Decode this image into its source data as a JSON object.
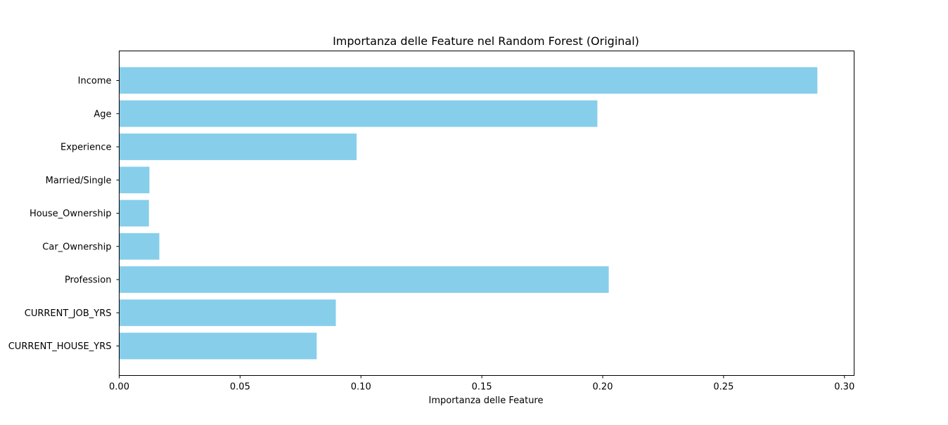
{
  "chart_data": {
    "type": "bar",
    "orientation": "horizontal",
    "title": "Importanza delle Feature nel Random Forest (Original)",
    "xlabel": "Importanza delle Feature",
    "ylabel": "",
    "xlim": [
      0,
      0.304
    ],
    "xticks": [
      0.0,
      0.05,
      0.1,
      0.15,
      0.2,
      0.25,
      0.3
    ],
    "xtick_labels": [
      "0.00",
      "0.05",
      "0.10",
      "0.15",
      "0.20",
      "0.25",
      "0.30"
    ],
    "grid": false,
    "bar_color": "#87ceeb",
    "categories": [
      "Income",
      "Age",
      "Experience",
      "Married/Single",
      "House_Ownership",
      "Car_Ownership",
      "Profession",
      "CURRENT_JOB_YRS",
      "CURRENT_HOUSE_YRS"
    ],
    "values": [
      0.2888,
      0.1978,
      0.0982,
      0.0125,
      0.0123,
      0.0166,
      0.2025,
      0.0896,
      0.0817
    ]
  }
}
